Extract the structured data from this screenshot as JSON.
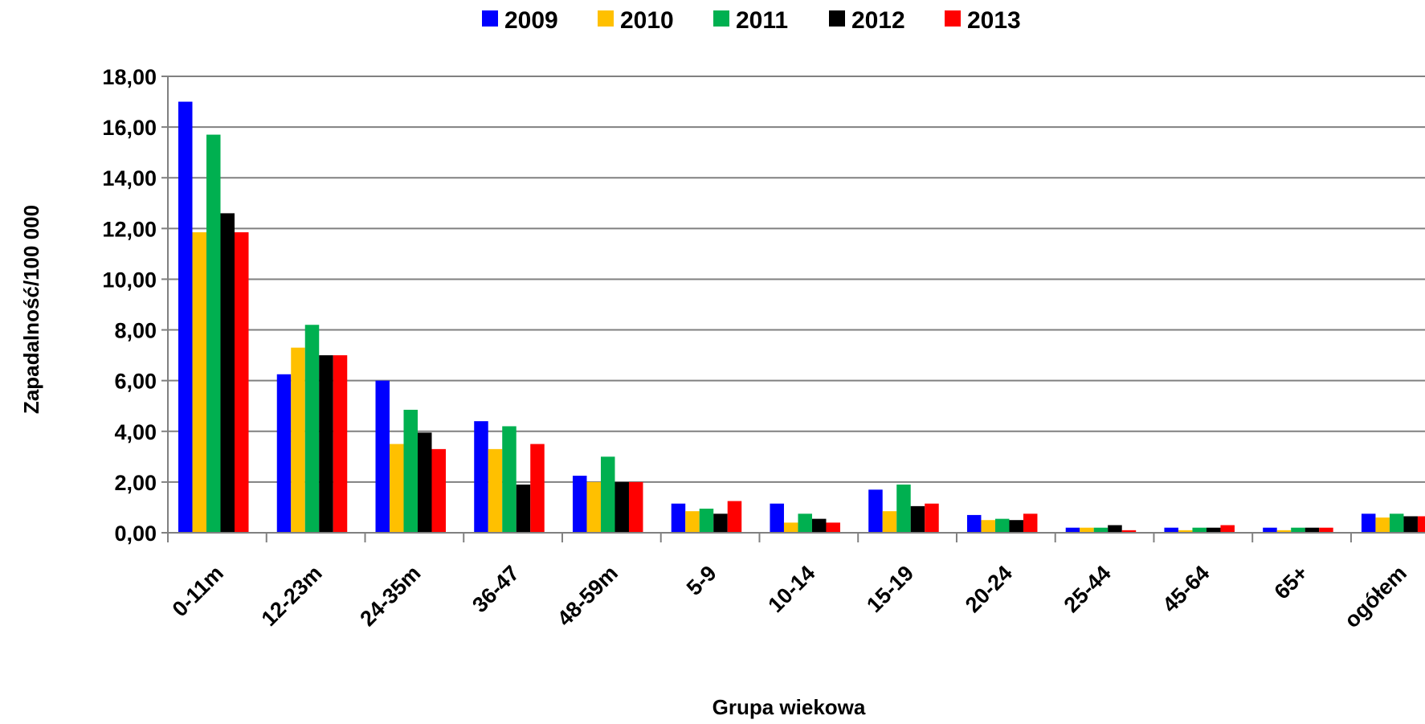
{
  "chart_data": {
    "type": "bar",
    "title": "",
    "xlabel": "Grupa wiekowa",
    "ylabel": "Zapadalność/100  000",
    "ylim": [
      0,
      18
    ],
    "y_ticks": [
      "0,00",
      "2,00",
      "4,00",
      "6,00",
      "8,00",
      "10,00",
      "12,00",
      "14,00",
      "16,00",
      "18,00"
    ],
    "grid": true,
    "legend_position": "top",
    "categories": [
      "0-11m",
      "12-23m",
      "24-35m",
      "36-47",
      "48-59m",
      "5-9",
      "10-14",
      "15-19",
      "20-24",
      "25-44",
      "45-64",
      "65+",
      "ogółem"
    ],
    "series": [
      {
        "name": "2009",
        "color": "#0000FF",
        "values": [
          17.0,
          6.25,
          6.0,
          4.4,
          2.25,
          1.15,
          1.15,
          1.7,
          0.7,
          0.2,
          0.2,
          0.2,
          0.75
        ]
      },
      {
        "name": "2010",
        "color": "#FFC000",
        "values": [
          11.85,
          7.3,
          3.5,
          3.3,
          2.0,
          0.85,
          0.4,
          0.85,
          0.5,
          0.2,
          0.1,
          0.1,
          0.6
        ]
      },
      {
        "name": "2011",
        "color": "#00B050",
        "values": [
          15.7,
          8.2,
          4.85,
          4.2,
          3.0,
          0.95,
          0.75,
          1.9,
          0.55,
          0.2,
          0.2,
          0.2,
          0.75
        ]
      },
      {
        "name": "2012",
        "color": "#000000",
        "values": [
          12.6,
          7.0,
          3.95,
          1.9,
          2.0,
          0.75,
          0.55,
          1.05,
          0.5,
          0.3,
          0.2,
          0.2,
          0.65
        ]
      },
      {
        "name": "2013",
        "color": "#FF0000",
        "values": [
          11.85,
          7.0,
          3.3,
          3.5,
          2.0,
          1.25,
          0.4,
          1.15,
          0.75,
          0.1,
          0.3,
          0.2,
          0.65
        ]
      }
    ]
  }
}
